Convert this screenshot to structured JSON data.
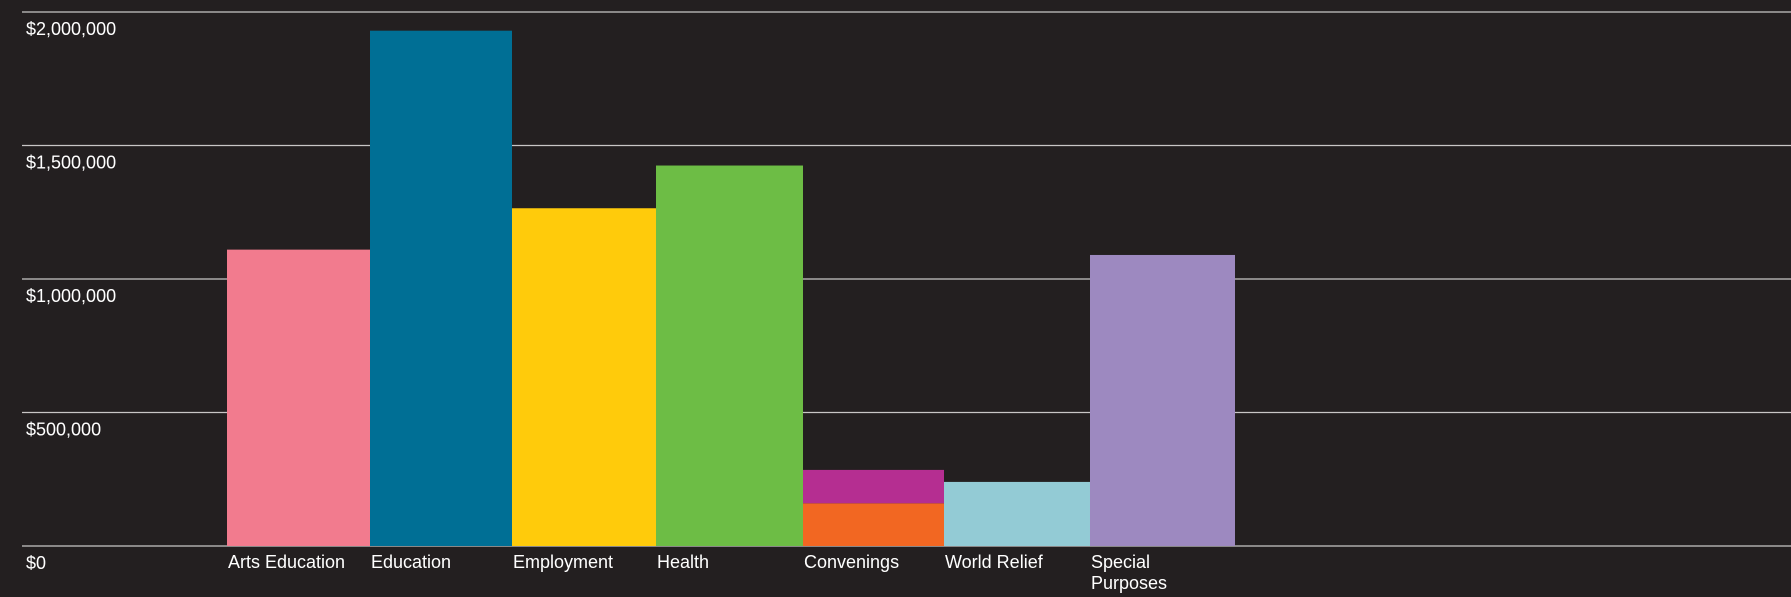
{
  "chart_data": {
    "type": "bar",
    "stacked": true,
    "title": "",
    "xlabel": "",
    "ylabel": "",
    "ylim": [
      0,
      2000000
    ],
    "grid": true,
    "y_ticks": [
      {
        "value": 0,
        "label": "$0"
      },
      {
        "value": 500000,
        "label": "$500,000"
      },
      {
        "value": 1000000,
        "label": "$1,000,000"
      },
      {
        "value": 1500000,
        "label": "$1,500,000"
      },
      {
        "value": 2000000,
        "label": "$2,000,000"
      }
    ],
    "categories": [
      {
        "label": [
          "Arts Education"
        ]
      },
      {
        "label": [
          "Education"
        ]
      },
      {
        "label": [
          "Employment"
        ]
      },
      {
        "label": [
          "Health"
        ]
      },
      {
        "label": [
          "Convenings"
        ]
      },
      {
        "label": [
          "World Relief"
        ]
      },
      {
        "label": [
          "Special",
          "Purposes"
        ]
      }
    ],
    "series": [
      {
        "color": "#f27b8e",
        "values": [
          1110000,
          0,
          0,
          0,
          0,
          0,
          0
        ]
      },
      {
        "color": "#006f95",
        "values": [
          0,
          1930000,
          0,
          0,
          0,
          0,
          0
        ]
      },
      {
        "color": "#ffcb0b",
        "values": [
          0,
          0,
          1265000,
          0,
          0,
          0,
          0
        ]
      },
      {
        "color": "#6dbd45",
        "values": [
          0,
          0,
          0,
          1425000,
          0,
          0,
          0
        ]
      },
      {
        "color": "#f26722",
        "values": [
          0,
          0,
          0,
          0,
          160000,
          0,
          0
        ]
      },
      {
        "color": "#b52e91",
        "values": [
          0,
          0,
          0,
          0,
          125000,
          0,
          0
        ]
      },
      {
        "color": "#93cbd5",
        "values": [
          0,
          0,
          0,
          0,
          0,
          240000,
          0
        ]
      },
      {
        "color": "#9d89c0",
        "values": [
          0,
          0,
          0,
          0,
          0,
          0,
          1090000
        ]
      }
    ]
  }
}
